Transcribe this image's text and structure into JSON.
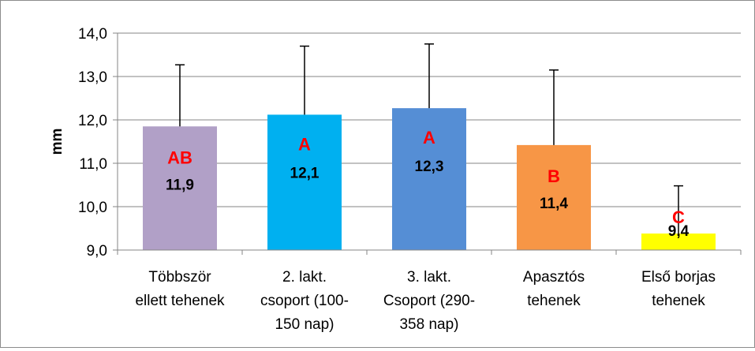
{
  "chart_data": {
    "type": "bar",
    "title": "",
    "xlabel": "",
    "ylabel": "mm",
    "ylim": [
      9.0,
      14.0
    ],
    "yticks": [
      9.0,
      10.0,
      11.0,
      12.0,
      13.0,
      14.0
    ],
    "ytick_labels": [
      "9,0",
      "10,0",
      "11,0",
      "12,0",
      "13,0",
      "14,0"
    ],
    "grid": true,
    "legend": "none",
    "categories": [
      [
        "Többször",
        "ellett tehenek"
      ],
      [
        "2. lakt.",
        "csoport (100-",
        "150 nap)"
      ],
      [
        "3. lakt.",
        "Csoport (290-",
        "358 nap)"
      ],
      [
        "Apasztós",
        "tehenek"
      ],
      [
        "Első borjas",
        "tehenek"
      ]
    ],
    "values": [
      11.85,
      12.12,
      12.27,
      11.42,
      9.38
    ],
    "value_labels": [
      "11,9",
      "12,1",
      "12,3",
      "11,4",
      "9,4"
    ],
    "error_upper": [
      13.27,
      13.7,
      13.75,
      13.15,
      10.48
    ],
    "group_letters": [
      "AB",
      "A",
      "A",
      "B",
      "C"
    ],
    "colors": [
      "#b1a0c7",
      "#00b0f0",
      "#558ed5",
      "#f79646",
      "#ffff00"
    ],
    "gridline_color": "#868686",
    "letter_color": "#ff0000"
  }
}
